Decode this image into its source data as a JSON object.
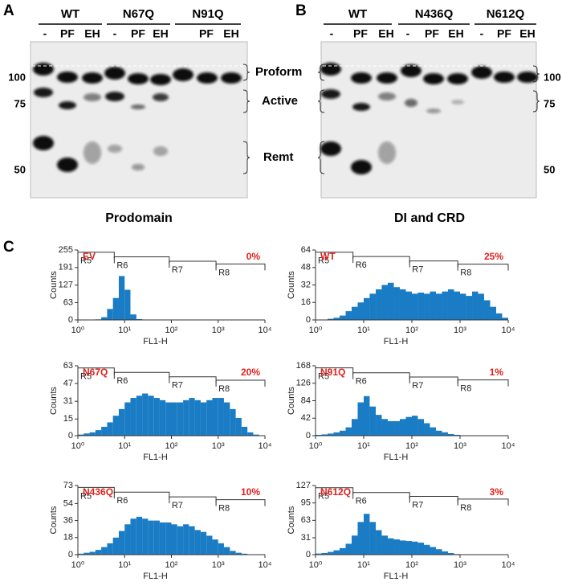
{
  "panel_a": {
    "letter": "A",
    "groups": [
      {
        "name": "WT",
        "lanes": [
          "-",
          "PF",
          "EH"
        ]
      },
      {
        "name": "N67Q",
        "lanes": [
          "-",
          "PF",
          "EH"
        ]
      },
      {
        "name": "N91Q",
        "lanes": [
          "PF",
          "EH"
        ]
      }
    ],
    "markers": [
      100,
      75,
      50
    ],
    "bands": [
      "Proform",
      "Active",
      "Remt"
    ],
    "caption": "Prodomain"
  },
  "panel_b": {
    "letter": "B",
    "groups": [
      {
        "name": "WT",
        "lanes": [
          "-",
          "PF",
          "EH"
        ]
      },
      {
        "name": "N436Q",
        "lanes": [
          "-",
          "PF",
          "EH"
        ]
      },
      {
        "name": "N612Q",
        "lanes": [
          "-",
          "PF",
          "EH"
        ]
      }
    ],
    "markers": [
      100,
      75,
      50
    ],
    "caption": "DI and CRD"
  },
  "panel_c": {
    "letter": "C",
    "y_label": "Counts",
    "x_label": "FL1-H",
    "log_x": true,
    "xlim": [
      1,
      10000
    ],
    "xticks": [
      {
        "value": 1,
        "label": "10⁰"
      },
      {
        "value": 10,
        "label": "10¹"
      },
      {
        "value": 100,
        "label": "10²"
      },
      {
        "value": 1000,
        "label": "10³"
      },
      {
        "value": 10000,
        "label": "10⁴"
      }
    ],
    "bins": [
      1,
      1.33,
      1.78,
      2.37,
      3.16,
      4.22,
      5.62,
      7.5,
      10,
      13.3,
      17.8,
      23.7,
      31.6,
      42.2,
      56.2,
      75,
      100,
      133,
      178,
      237,
      316,
      422,
      562,
      750,
      1000,
      1330,
      1780,
      2370,
      3160,
      4220,
      5620,
      7500,
      10000
    ],
    "color": "#1a7cc4",
    "gates": [
      {
        "name": "R5",
        "range": [
          1,
          6
        ]
      },
      {
        "name": "R6",
        "range": [
          6,
          90
        ]
      },
      {
        "name": "R7",
        "range": [
          90,
          900
        ]
      },
      {
        "name": "R8",
        "range": [
          900,
          10000
        ]
      }
    ],
    "plots": [
      {
        "label": "EV",
        "percent": "0%",
        "ylim": [
          0,
          255
        ],
        "yticks": [
          0,
          63,
          127,
          191,
          255
        ],
        "gate_levels": [
          247,
          230,
          214,
          204
        ],
        "counts": [
          0,
          0,
          0,
          2,
          10,
          40,
          80,
          160,
          110,
          20,
          3,
          0,
          0,
          0,
          0,
          0,
          0,
          0,
          0,
          0,
          0,
          0,
          0,
          0,
          0,
          0,
          0,
          0,
          0,
          0,
          0,
          0
        ]
      },
      {
        "label": "WT",
        "percent": "25%",
        "ylim": [
          0,
          64
        ],
        "yticks": [
          0,
          16,
          32,
          48,
          64
        ],
        "gate_levels": [
          62,
          58,
          54,
          51
        ],
        "counts": [
          0,
          0,
          1,
          2,
          4,
          8,
          12,
          16,
          20,
          24,
          28,
          32,
          34,
          30,
          28,
          26,
          24,
          25,
          24,
          26,
          24,
          26,
          28,
          26,
          24,
          22,
          26,
          24,
          18,
          12,
          6,
          2
        ]
      },
      {
        "label": "N67Q",
        "percent": "20%",
        "ylim": [
          0,
          63
        ],
        "yticks": [
          0,
          15,
          31,
          47,
          63
        ],
        "gate_levels": [
          61,
          57,
          53,
          50
        ],
        "counts": [
          1,
          2,
          3,
          5,
          8,
          12,
          18,
          24,
          30,
          34,
          36,
          38,
          36,
          34,
          32,
          30,
          30,
          30,
          32,
          34,
          32,
          30,
          32,
          34,
          34,
          30,
          24,
          16,
          8,
          3,
          1,
          0
        ]
      },
      {
        "label": "N91Q",
        "percent": "1%",
        "ylim": [
          0,
          168
        ],
        "yticks": [
          0,
          42,
          84,
          126,
          168
        ],
        "gate_levels": [
          163,
          151,
          141,
          134
        ],
        "counts": [
          2,
          3,
          5,
          8,
          12,
          20,
          40,
          80,
          95,
          70,
          50,
          40,
          35,
          35,
          40,
          45,
          48,
          40,
          30,
          20,
          12,
          8,
          4,
          2,
          1,
          0,
          0,
          0,
          0,
          0,
          0,
          0
        ]
      },
      {
        "label": "N436Q",
        "percent": "10%",
        "ylim": [
          0,
          73
        ],
        "yticks": [
          0,
          18,
          36,
          54,
          73
        ],
        "gate_levels": [
          71,
          66,
          61,
          58
        ],
        "counts": [
          1,
          2,
          3,
          5,
          8,
          12,
          18,
          25,
          32,
          38,
          40,
          38,
          36,
          36,
          34,
          34,
          32,
          30,
          32,
          30,
          26,
          24,
          20,
          16,
          12,
          8,
          4,
          2,
          1,
          0,
          0,
          0
        ]
      },
      {
        "label": "N612Q",
        "percent": "3%",
        "ylim": [
          0,
          127
        ],
        "yticks": [
          0,
          31,
          63,
          95,
          127
        ],
        "gate_levels": [
          123,
          114,
          107,
          102
        ],
        "counts": [
          2,
          3,
          5,
          8,
          12,
          20,
          35,
          60,
          75,
          60,
          45,
          35,
          30,
          28,
          26,
          25,
          24,
          22,
          18,
          14,
          10,
          6,
          3,
          1,
          0,
          0,
          0,
          0,
          0,
          0,
          0,
          0
        ]
      }
    ]
  }
}
